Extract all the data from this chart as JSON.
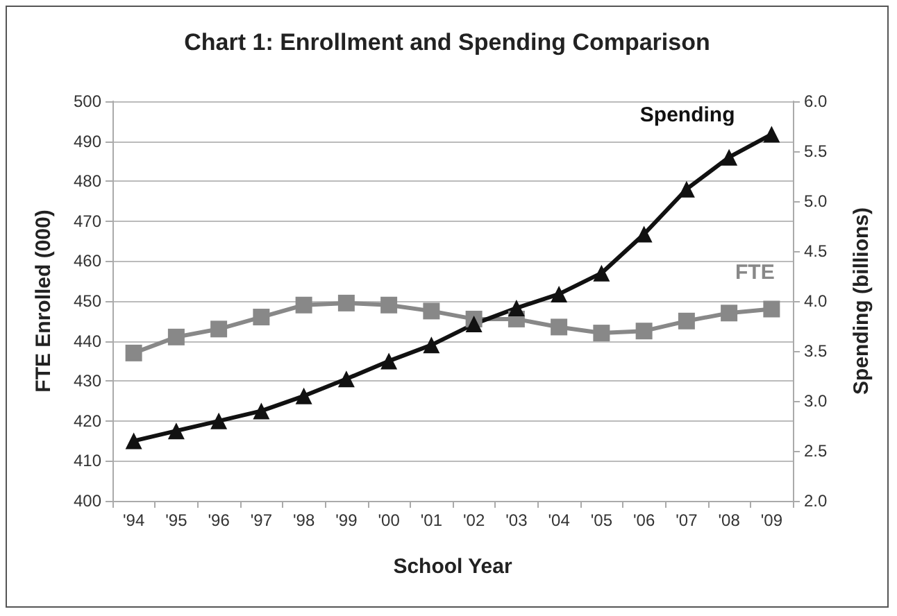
{
  "chart_data": {
    "type": "line",
    "title": "Chart 1: Enrollment and Spending Comparison",
    "xlabel": "School Year",
    "ylabel": "FTE Enrolled (000)",
    "y2label": "Spending (billions)",
    "categories": [
      "'94",
      "'95",
      "'96",
      "'97",
      "'98",
      "'99",
      "'00",
      "'01",
      "'02",
      "'03",
      "'04",
      "'05",
      "'06",
      "'07",
      "'08",
      "'09"
    ],
    "series": [
      {
        "name": "FTE",
        "color": "#888888",
        "marker": "square",
        "values": [
          437,
          441,
          443,
          446,
          449,
          449.5,
          449,
          447.5,
          445.5,
          445.5,
          443.5,
          442,
          442.5,
          445,
          447,
          448
        ]
      },
      {
        "name": "Spending",
        "color": "#111111",
        "marker": "triangle",
        "axis": "y2",
        "values": [
          2.6,
          2.7,
          2.8,
          2.9,
          3.05,
          3.22,
          3.4,
          3.56,
          3.77,
          3.93,
          4.07,
          4.28,
          4.67,
          5.12,
          5.44,
          5.67
        ]
      }
    ],
    "ylim": [
      400,
      500
    ],
    "yticks": [
      400,
      410,
      420,
      430,
      440,
      450,
      460,
      470,
      480,
      490,
      500
    ],
    "y2lim": [
      2.0,
      6.0
    ],
    "y2ticks": [
      {
        "value": 2,
        "label": "2.0"
      },
      {
        "value": 2.5,
        "label": "2.5"
      },
      {
        "value": 3,
        "label": "3.0"
      },
      {
        "value": 3.5,
        "label": "3.5"
      },
      {
        "value": 4,
        "label": "4.0"
      },
      {
        "value": 4.5,
        "label": "4.5"
      },
      {
        "value": 5,
        "label": "5.0"
      },
      {
        "value": 5.5,
        "label": "5.5"
      },
      {
        "value": 6,
        "label": "6.0"
      }
    ],
    "grid": "y",
    "legend": false,
    "line_style": "solid"
  }
}
